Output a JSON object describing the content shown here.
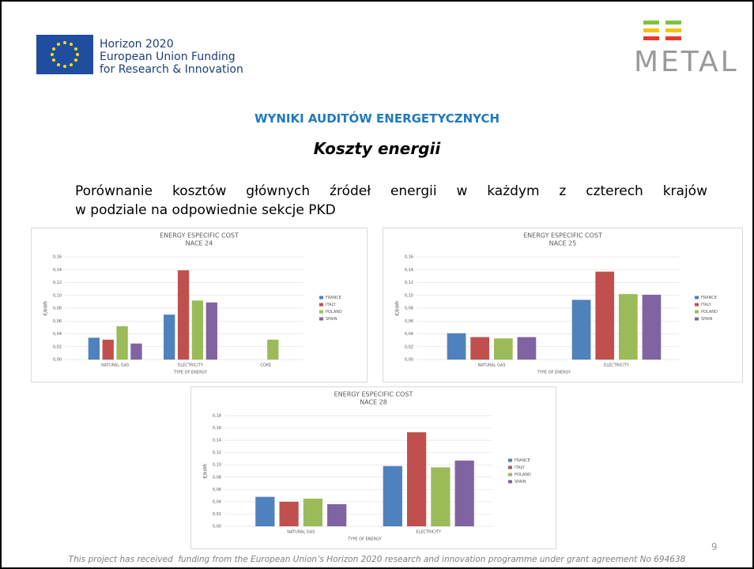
{
  "header": {
    "title": "Horizon 2020",
    "lines": [
      "European Union Funding",
      "for Research & Innovation"
    ],
    "logo": "METAL"
  },
  "heading": "WYNIKI AUDITÓW ENERGETYCZNYCH",
  "subheading": "Koszty energii",
  "paragraph": [
    "Porównanie kosztów głównych źródeł energii w każdym z czterech krajów",
    "w podziale na odpowiednie sekcje PKD"
  ],
  "footer": "This project has received  funding from the European Union’s Horizon 2020 research and innovation programme under grant agreement No 694638",
  "page_number": "9",
  "chart_data": [
    {
      "type": "bar",
      "title": "ENERGY ESPECIFIC COST",
      "subtitle": "NACE 24",
      "x_label": "TYPE OF ENERGY",
      "y_label": "€/kWh",
      "categories": [
        "NATURAL GAS",
        "ELECTRICITY",
        "COKE"
      ],
      "series": [
        {
          "name": "FRANCE",
          "color": "#4f81bd",
          "values": [
            0.034,
            0.07,
            null
          ]
        },
        {
          "name": "ITALY",
          "color": "#c0504d",
          "values": [
            0.031,
            0.139,
            null
          ]
        },
        {
          "name": "POLAND",
          "color": "#9bbb59",
          "values": [
            0.052,
            0.092,
            0.031
          ]
        },
        {
          "name": "SPAIN",
          "color": "#8064a2",
          "values": [
            0.025,
            0.089,
            null
          ]
        }
      ],
      "ylim": [
        0,
        0.16
      ],
      "yticks": [
        {
          "value": 0,
          "label": "0,00"
        },
        {
          "value": 0.02,
          "label": "0,02"
        },
        {
          "value": 0.04,
          "label": "0,04"
        },
        {
          "value": 0.06,
          "label": "0,06"
        },
        {
          "value": 0.08,
          "label": "0,08"
        },
        {
          "value": 0.1,
          "label": "0,10"
        },
        {
          "value": 0.12,
          "label": "0,12"
        },
        {
          "value": 0.14,
          "label": "0,14"
        },
        {
          "value": 0.16,
          "label": "0,16"
        }
      ],
      "grid": true,
      "legend": "right"
    },
    {
      "type": "bar",
      "title": "ENERGY ESPECIFIC COST",
      "subtitle": "NACE 25",
      "x_label": "TYPE OF ENERGY",
      "y_label": "€/kWh",
      "categories": [
        "NATURAL GAS",
        "ELECTRICITY"
      ],
      "series": [
        {
          "name": "FRANCE",
          "color": "#4f81bd",
          "values": [
            0.041,
            0.093
          ]
        },
        {
          "name": "ITALY",
          "color": "#c0504d",
          "values": [
            0.035,
            0.137
          ]
        },
        {
          "name": "POLAND",
          "color": "#9bbb59",
          "values": [
            0.033,
            0.102
          ]
        },
        {
          "name": "SPAIN",
          "color": "#8064a2",
          "values": [
            0.035,
            0.101
          ]
        }
      ],
      "ylim": [
        0,
        0.16
      ],
      "yticks": [
        {
          "value": 0,
          "label": "0,00"
        },
        {
          "value": 0.02,
          "label": "0,02"
        },
        {
          "value": 0.04,
          "label": "0,04"
        },
        {
          "value": 0.06,
          "label": "0,06"
        },
        {
          "value": 0.08,
          "label": "0,08"
        },
        {
          "value": 0.1,
          "label": "0,10"
        },
        {
          "value": 0.12,
          "label": "0,12"
        },
        {
          "value": 0.14,
          "label": "0,14"
        },
        {
          "value": 0.16,
          "label": "0,16"
        }
      ],
      "grid": true,
      "legend": "right"
    },
    {
      "type": "bar",
      "title": "ENERGY ESPECIFIC COST",
      "subtitle": "NACE 28",
      "x_label": "TYPE OF ENERGY",
      "y_label": "€/kWh",
      "categories": [
        "NATURAL GAS",
        "ELECTRICITY"
      ],
      "series": [
        {
          "name": "FRANCE",
          "color": "#4f81bd",
          "values": [
            0.048,
            0.098
          ]
        },
        {
          "name": "ITALY",
          "color": "#c0504d",
          "values": [
            0.04,
            0.153
          ]
        },
        {
          "name": "POLAND",
          "color": "#9bbb59",
          "values": [
            0.045,
            0.096
          ]
        },
        {
          "name": "SPAIN",
          "color": "#8064a2",
          "values": [
            0.036,
            0.107
          ]
        }
      ],
      "ylim": [
        0,
        0.18
      ],
      "yticks": [
        {
          "value": 0,
          "label": "0,00"
        },
        {
          "value": 0.02,
          "label": "0,02"
        },
        {
          "value": 0.04,
          "label": "0,04"
        },
        {
          "value": 0.06,
          "label": "0,06"
        },
        {
          "value": 0.08,
          "label": "0,08"
        },
        {
          "value": 0.1,
          "label": "0,10"
        },
        {
          "value": 0.12,
          "label": "0,12"
        },
        {
          "value": 0.14,
          "label": "0,14"
        },
        {
          "value": 0.16,
          "label": "0,16"
        },
        {
          "value": 0.18,
          "label": "0,18"
        }
      ],
      "grid": true,
      "legend": "right"
    }
  ]
}
